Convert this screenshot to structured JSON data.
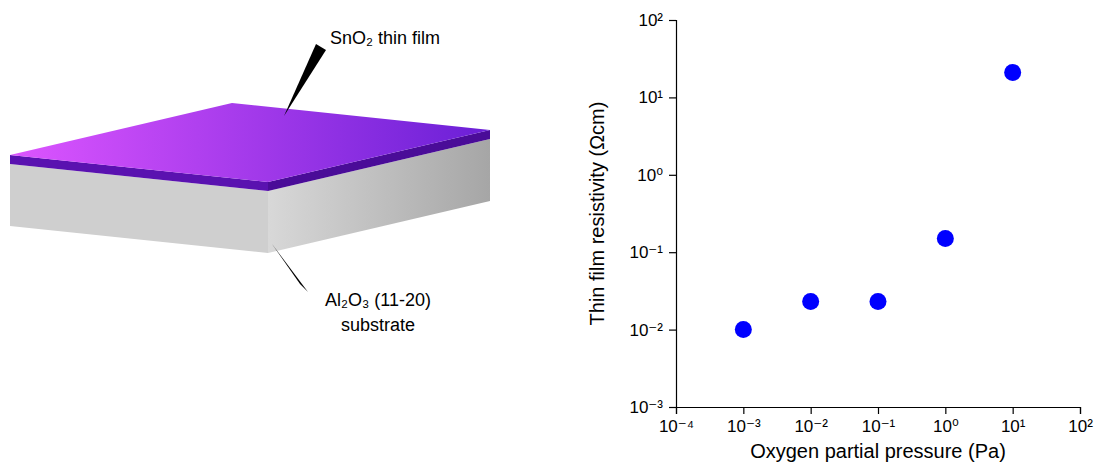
{
  "chart_data": {
    "type": "scatter",
    "x_label": "Oxygen partial pressure (Pa)",
    "y_label": "Thin film resistivity (Ωcm)",
    "x": [
      0.001,
      0.01,
      0.1,
      1,
      10
    ],
    "values": [
      0.01,
      0.023,
      0.023,
      0.15,
      21
    ],
    "color": "#0000ff",
    "marker": "circle",
    "log": true,
    "grid": false,
    "xlim": [
      0.0001,
      100
    ],
    "xticks": [
      {
        "value": 0.0001,
        "label": "10⁻⁴"
      },
      {
        "value": 0.001,
        "label": "10⁻³"
      },
      {
        "value": 0.01,
        "label": "10⁻²"
      },
      {
        "value": 0.1,
        "label": "10⁻¹"
      },
      {
        "value": 1,
        "label": "10⁰"
      },
      {
        "value": 10,
        "label": "10¹"
      },
      {
        "value": 100,
        "label": "10²"
      }
    ],
    "ylim": [
      0.001,
      100
    ],
    "yticks": [
      {
        "value": 0.001,
        "label": "10⁻³"
      },
      {
        "value": 0.01,
        "label": "10⁻²"
      },
      {
        "value": 0.1,
        "label": "10⁻¹"
      },
      {
        "value": 1,
        "label": "10⁰"
      },
      {
        "value": 10,
        "label": "10¹"
      },
      {
        "value": 100,
        "label": "10²"
      }
    ]
  },
  "diagram": {
    "film_label": "SnO₂ thin film",
    "substrate_label": [
      "Al₂O₃ (11-20)",
      "substrate"
    ]
  }
}
